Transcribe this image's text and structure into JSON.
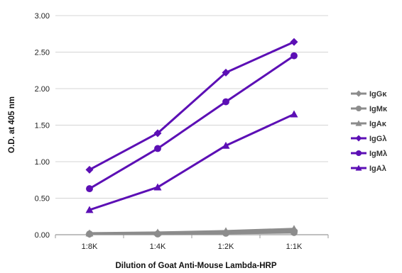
{
  "chart_data": {
    "type": "line",
    "title": "",
    "xlabel": "Dilution of Goat Anti-Mouse Lambda-HRP",
    "ylabel": "O.D. at 405 nm",
    "categories": [
      "1:8K",
      "1:4K",
      "1:2K",
      "1:1K"
    ],
    "ylim": [
      0,
      3
    ],
    "yticks": [
      "0.00",
      "0.50",
      "1.00",
      "1.50",
      "2.00",
      "2.50",
      "3.00"
    ],
    "grid": true,
    "legend_position": "right",
    "series": [
      {
        "name": "IgGκ",
        "marker": "diamond",
        "color": "#8c8c8c",
        "values": [
          0.01,
          0.02,
          0.03,
          0.06
        ]
      },
      {
        "name": "IgMκ",
        "marker": "circle",
        "color": "#8c8c8c",
        "values": [
          0.01,
          0.01,
          0.02,
          0.03
        ]
      },
      {
        "name": "IgAκ",
        "marker": "triangle",
        "color": "#8c8c8c",
        "values": [
          0.02,
          0.03,
          0.05,
          0.08
        ]
      },
      {
        "name": "IgGλ",
        "marker": "diamond",
        "color": "#5c0fb5",
        "values": [
          0.89,
          1.39,
          2.22,
          2.64
        ]
      },
      {
        "name": "IgMλ",
        "marker": "circle",
        "color": "#5c0fb5",
        "values": [
          0.63,
          1.18,
          1.82,
          2.45
        ]
      },
      {
        "name": "IgAλ",
        "marker": "triangle",
        "color": "#5c0fb5",
        "values": [
          0.34,
          0.65,
          1.22,
          1.65
        ]
      }
    ]
  }
}
